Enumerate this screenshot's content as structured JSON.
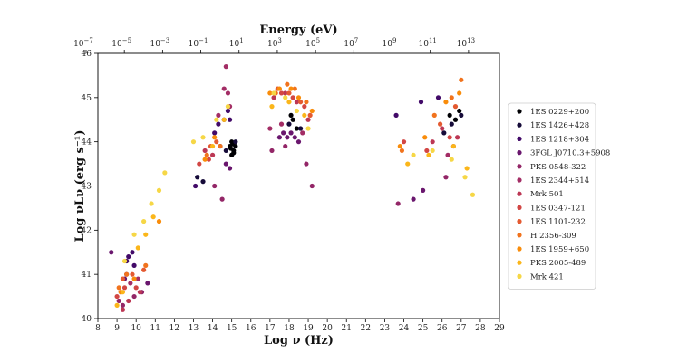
{
  "chart_data": {
    "type": "scatter",
    "title": "",
    "xlabel": "Log ν (Hz)",
    "ylabel": "Log νLν (erg s⁻¹)",
    "top_axis_label": "Energy (eV)",
    "xlim": [
      8,
      29
    ],
    "ylim": [
      40,
      46
    ],
    "x_ticks": [
      "8",
      "9",
      "10",
      "11",
      "12",
      "13",
      "14",
      "15",
      "16",
      "17",
      "18",
      "19",
      "20",
      "21",
      "22",
      "23",
      "24",
      "25",
      "26",
      "27",
      "28",
      "29"
    ],
    "y_ticks": [
      "40",
      "41",
      "42",
      "43",
      "44",
      "45",
      "46"
    ],
    "top_ticks": [
      {
        "base": "10",
        "exp": "−7",
        "log_nu": 7.383
      },
      {
        "base": "10",
        "exp": "−5",
        "log_nu": 9.383
      },
      {
        "base": "10",
        "exp": "−3",
        "log_nu": 11.383
      },
      {
        "base": "10",
        "exp": "−1",
        "log_nu": 13.383
      },
      {
        "base": "10",
        "exp": "1",
        "log_nu": 15.383
      },
      {
        "base": "10",
        "exp": "3",
        "log_nu": 17.383
      },
      {
        "base": "10",
        "exp": "5",
        "log_nu": 19.383
      },
      {
        "base": "10",
        "exp": "7",
        "log_nu": 21.383
      },
      {
        "base": "10",
        "exp": "9",
        "log_nu": 23.383
      },
      {
        "base": "10",
        "exp": "11",
        "log_nu": 25.383
      },
      {
        "base": "10",
        "exp": "13",
        "log_nu": 27.383
      }
    ],
    "legend_position": "right",
    "series": [
      {
        "name": "1ES 0229+200",
        "color": "#000004",
        "points": [
          [
            15.0,
            43.7
          ],
          [
            15.1,
            43.8
          ],
          [
            15.2,
            43.9
          ],
          [
            14.9,
            43.9
          ],
          [
            15.0,
            44.0
          ],
          [
            15.1,
            43.75
          ],
          [
            14.95,
            43.85
          ],
          [
            15.05,
            43.95
          ],
          [
            18.1,
            44.6
          ],
          [
            18.4,
            44.3
          ],
          [
            18.2,
            44.5
          ],
          [
            26.4,
            44.6
          ],
          [
            26.7,
            44.5
          ],
          [
            26.9,
            44.7
          ]
        ]
      },
      {
        "name": "1ES 1426+428",
        "color": "#160b39",
        "points": [
          [
            13.2,
            43.2
          ],
          [
            13.5,
            43.1
          ],
          [
            14.4,
            43.9
          ],
          [
            14.7,
            43.8
          ],
          [
            15.2,
            44.0
          ],
          [
            18.0,
            44.4
          ],
          [
            18.6,
            44.3
          ],
          [
            26.1,
            44.2
          ],
          [
            26.5,
            44.4
          ],
          [
            27.0,
            44.6
          ]
        ]
      },
      {
        "name": "1ES 1218+304",
        "color": "#420a68",
        "points": [
          [
            9.5,
            41.3
          ],
          [
            9.6,
            41.4
          ],
          [
            9.8,
            41.5
          ],
          [
            9.9,
            41.2
          ],
          [
            13.1,
            43.0
          ],
          [
            14.1,
            44.2
          ],
          [
            14.3,
            44.4
          ],
          [
            14.6,
            44.5
          ],
          [
            14.8,
            44.7
          ],
          [
            14.9,
            44.5
          ],
          [
            23.6,
            44.6
          ],
          [
            24.9,
            44.9
          ],
          [
            25.8,
            45.0
          ]
        ]
      },
      {
        "name": "3FGL J0710.3+5908",
        "color": "#6a176e",
        "points": [
          [
            8.7,
            41.5
          ],
          [
            9.4,
            40.9
          ],
          [
            9.5,
            41.0
          ],
          [
            10.6,
            40.8
          ],
          [
            14.7,
            43.5
          ],
          [
            14.9,
            43.4
          ],
          [
            17.5,
            44.1
          ],
          [
            17.7,
            44.2
          ],
          [
            17.9,
            44.1
          ],
          [
            18.1,
            44.2
          ],
          [
            18.3,
            44.1
          ],
          [
            18.5,
            44.0
          ],
          [
            24.5,
            42.7
          ],
          [
            25.0,
            42.9
          ]
        ]
      },
      {
        "name": "PKS 0548-322",
        "color": "#932667",
        "points": [
          [
            9.1,
            40.4
          ],
          [
            9.3,
            40.3
          ],
          [
            9.9,
            40.5
          ],
          [
            10.3,
            40.6
          ],
          [
            14.1,
            43.0
          ],
          [
            14.5,
            42.7
          ],
          [
            17.1,
            43.8
          ],
          [
            17.8,
            43.9
          ],
          [
            18.9,
            43.5
          ],
          [
            19.2,
            43.0
          ],
          [
            23.7,
            42.6
          ],
          [
            26.2,
            43.2
          ]
        ]
      },
      {
        "name": "1ES 2344+514",
        "color": "#a32d65",
        "points": [
          [
            9.2,
            40.6
          ],
          [
            9.7,
            40.8
          ],
          [
            10.1,
            40.9
          ],
          [
            14.3,
            44.6
          ],
          [
            14.6,
            45.2
          ],
          [
            14.7,
            45.7
          ],
          [
            14.8,
            45.1
          ],
          [
            14.9,
            44.8
          ],
          [
            17.0,
            44.3
          ],
          [
            17.6,
            44.4
          ],
          [
            18.7,
            44.2
          ],
          [
            26.3,
            43.7
          ],
          [
            26.6,
            43.9
          ]
        ]
      },
      {
        "name": "Mrk 501",
        "color": "#bc3754",
        "points": [
          [
            9.3,
            40.2
          ],
          [
            9.6,
            40.4
          ],
          [
            10.2,
            40.6
          ],
          [
            13.6,
            43.8
          ],
          [
            14.0,
            43.7
          ],
          [
            17.2,
            45.0
          ],
          [
            17.8,
            45.1
          ],
          [
            18.4,
            44.9
          ],
          [
            19.0,
            44.5
          ],
          [
            25.5,
            44.0
          ],
          [
            26.0,
            44.3
          ],
          [
            26.8,
            44.1
          ]
        ]
      },
      {
        "name": "1ES 0347-121",
        "color": "#d24644",
        "points": [
          [
            9.0,
            40.5
          ],
          [
            9.4,
            40.7
          ],
          [
            10.0,
            40.7
          ],
          [
            13.3,
            43.5
          ],
          [
            13.8,
            43.6
          ],
          [
            17.6,
            45.1
          ],
          [
            18.2,
            45.0
          ],
          [
            18.8,
            44.8
          ],
          [
            24.0,
            44.0
          ],
          [
            25.2,
            43.8
          ],
          [
            26.4,
            44.1
          ]
        ]
      },
      {
        "name": "1ES 1101-232",
        "color": "#e45a31",
        "points": [
          [
            9.3,
            40.9
          ],
          [
            9.8,
            41.0
          ],
          [
            10.4,
            41.1
          ],
          [
            13.9,
            43.9
          ],
          [
            14.2,
            44.0
          ],
          [
            17.4,
            45.2
          ],
          [
            18.0,
            45.1
          ],
          [
            18.6,
            44.9
          ],
          [
            19.1,
            44.6
          ],
          [
            25.9,
            44.4
          ],
          [
            26.7,
            44.8
          ]
        ]
      },
      {
        "name": "H 2356-309",
        "color": "#f1731d",
        "points": [
          [
            9.1,
            40.7
          ],
          [
            9.5,
            41.0
          ],
          [
            10.5,
            41.2
          ],
          [
            13.7,
            43.7
          ],
          [
            14.4,
            43.9
          ],
          [
            17.3,
            45.1
          ],
          [
            17.9,
            45.3
          ],
          [
            18.3,
            45.2
          ],
          [
            18.9,
            44.9
          ],
          [
            23.9,
            43.8
          ],
          [
            25.6,
            44.6
          ],
          [
            26.5,
            45.0
          ],
          [
            27.0,
            45.4
          ]
        ]
      },
      {
        "name": "1ES 1959+650",
        "color": "#f98c0a",
        "points": [
          [
            9.2,
            40.6
          ],
          [
            9.9,
            40.9
          ],
          [
            11.2,
            42.2
          ],
          [
            13.6,
            43.6
          ],
          [
            14.1,
            44.1
          ],
          [
            17.0,
            45.1
          ],
          [
            17.5,
            45.2
          ],
          [
            18.1,
            45.2
          ],
          [
            18.5,
            45.0
          ],
          [
            19.2,
            44.7
          ],
          [
            23.8,
            43.9
          ],
          [
            25.1,
            44.1
          ],
          [
            26.2,
            44.9
          ],
          [
            26.9,
            45.1
          ]
        ]
      },
      {
        "name": "PKS 2005-489",
        "color": "#fbb61a",
        "points": [
          [
            9.0,
            40.3
          ],
          [
            9.3,
            40.6
          ],
          [
            10.1,
            41.6
          ],
          [
            10.5,
            41.9
          ],
          [
            10.9,
            42.3
          ],
          [
            14.0,
            43.9
          ],
          [
            14.6,
            44.5
          ],
          [
            17.1,
            44.8
          ],
          [
            18.0,
            44.9
          ],
          [
            18.8,
            44.6
          ],
          [
            24.2,
            43.5
          ],
          [
            25.3,
            43.7
          ],
          [
            26.6,
            43.9
          ],
          [
            27.3,
            43.4
          ]
        ]
      },
      {
        "name": "Mrk 421",
        "color": "#f6d746",
        "points": [
          [
            9.4,
            41.3
          ],
          [
            9.9,
            41.9
          ],
          [
            10.4,
            42.2
          ],
          [
            10.8,
            42.6
          ],
          [
            11.2,
            42.9
          ],
          [
            11.5,
            43.3
          ],
          [
            13.0,
            44.0
          ],
          [
            13.5,
            44.1
          ],
          [
            14.2,
            44.5
          ],
          [
            14.8,
            44.8
          ],
          [
            17.2,
            45.1
          ],
          [
            17.8,
            45.0
          ],
          [
            18.4,
            44.7
          ],
          [
            19.0,
            44.3
          ],
          [
            24.5,
            43.7
          ],
          [
            25.5,
            43.8
          ],
          [
            26.5,
            43.6
          ],
          [
            27.2,
            43.2
          ],
          [
            27.6,
            42.8
          ]
        ]
      }
    ]
  }
}
